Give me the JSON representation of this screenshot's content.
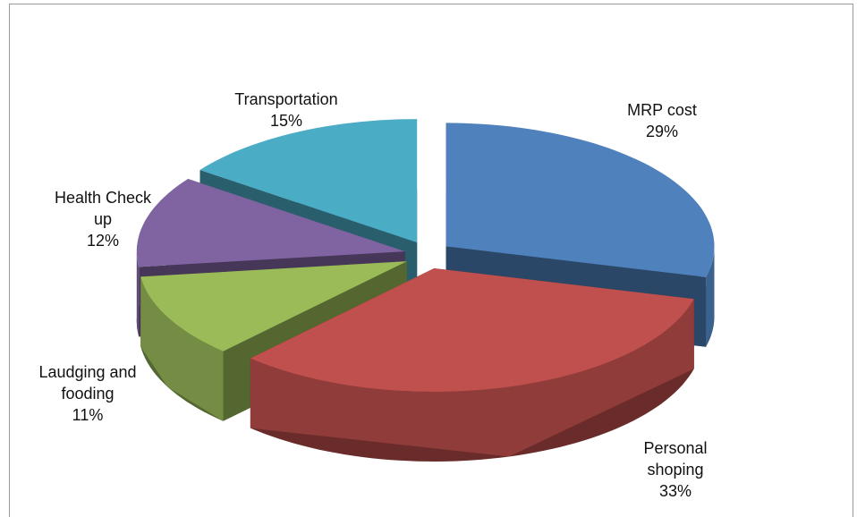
{
  "chart_data": {
    "type": "pie",
    "categories": [
      "MRP cost",
      "Personal shoping",
      "Laudging and fooding",
      "Health Check up",
      "Transportation"
    ],
    "values": [
      29,
      33,
      11,
      12,
      15
    ],
    "value_labels": [
      "29%",
      "33%",
      "11%",
      "12%",
      "15%"
    ],
    "colors": [
      "#4f81bd",
      "#c0504d",
      "#9bbb59",
      "#8064a2",
      "#4bacc6"
    ]
  }
}
